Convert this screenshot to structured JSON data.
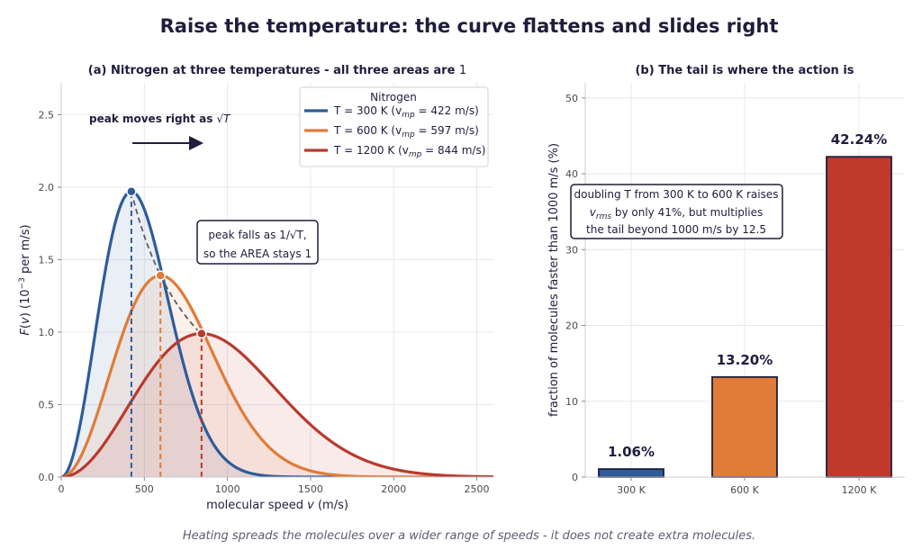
{
  "figure": {
    "suptitle": "Raise the temperature: the curve flattens and slides right",
    "footnote": "Heating spreads the molecules over a wider range of speeds - it does not create extra molecules."
  },
  "panel_a": {
    "title_main": "(a)  Nitrogen at three temperatures - all three areas are ",
    "title_one": "1",
    "annotation_peak_moves": "peak moves right as ",
    "annotation_peak_moves_sym": "√T",
    "box_line1": "peak falls as 1/√T,",
    "box_line2": "so the AREA stays 1",
    "legend_title": "Nitrogen",
    "legend": [
      {
        "T_label": "T = 300 K",
        "vmp_label": "(v",
        "vmp_sub": "mp",
        "vmp_val": " = 422 m/s)"
      },
      {
        "T_label": "T = 600 K",
        "vmp_label": "(v",
        "vmp_sub": "mp",
        "vmp_val": " = 597 m/s)"
      },
      {
        "T_label": "T = 1200 K",
        "vmp_label": "(v",
        "vmp_sub": "mp",
        "vmp_val": " = 844 m/s)"
      }
    ]
  },
  "panel_b": {
    "title": "(b)  The tail is where the action is",
    "box_line1": "doubling T from 300 K to 600 K raises",
    "box_line2_pre": "v",
    "box_line2_sub": "rms",
    "box_line2_post": " by only 41%, but multiplies",
    "box_line3": "the tail beyond 1000 m/s by 12.5"
  },
  "chart_data": [
    {
      "type": "line",
      "title": "(a)  Nitrogen at three temperatures - all three areas are 1",
      "xlabel": "molecular speed v  (m/s)",
      "ylabel": "F(v)  (10^-3 per m/s)",
      "xlim": [
        0,
        2600
      ],
      "ylim": [
        0,
        2.72
      ],
      "xticks": [
        0,
        500,
        1000,
        1500,
        2000,
        2500
      ],
      "yticks": [
        0.0,
        0.5,
        1.0,
        1.5,
        2.0,
        2.5
      ],
      "grid": true,
      "legend_position": "top-right",
      "distribution": "Maxwell-Boltzmann, N2",
      "series": [
        {
          "name": "T = 300 K",
          "T": 300,
          "vmp": 422,
          "peak": 1.97,
          "color": "#2e5c9a"
        },
        {
          "name": "T = 600 K",
          "T": 600,
          "vmp": 597,
          "peak": 1.39,
          "color": "#e07b39"
        },
        {
          "name": "T = 1200 K",
          "T": 1200,
          "vmp": 844,
          "peak": 0.99,
          "color": "#b83a2e"
        }
      ]
    },
    {
      "type": "bar",
      "title": "(b)  The tail is where the action is",
      "ylabel": "fraction of molecules faster than 1000 m/s  (%)",
      "categories": [
        "300 K",
        "600 K",
        "1200 K"
      ],
      "values": [
        1.06,
        13.2,
        42.24
      ],
      "value_labels": [
        "1.06%",
        "13.20%",
        "42.24%"
      ],
      "colors": [
        "#2e5c9a",
        "#e07b39",
        "#c0392b"
      ],
      "ylim": [
        0,
        52
      ],
      "yticks": [
        0,
        10,
        20,
        30,
        40,
        50
      ],
      "grid": true
    }
  ]
}
